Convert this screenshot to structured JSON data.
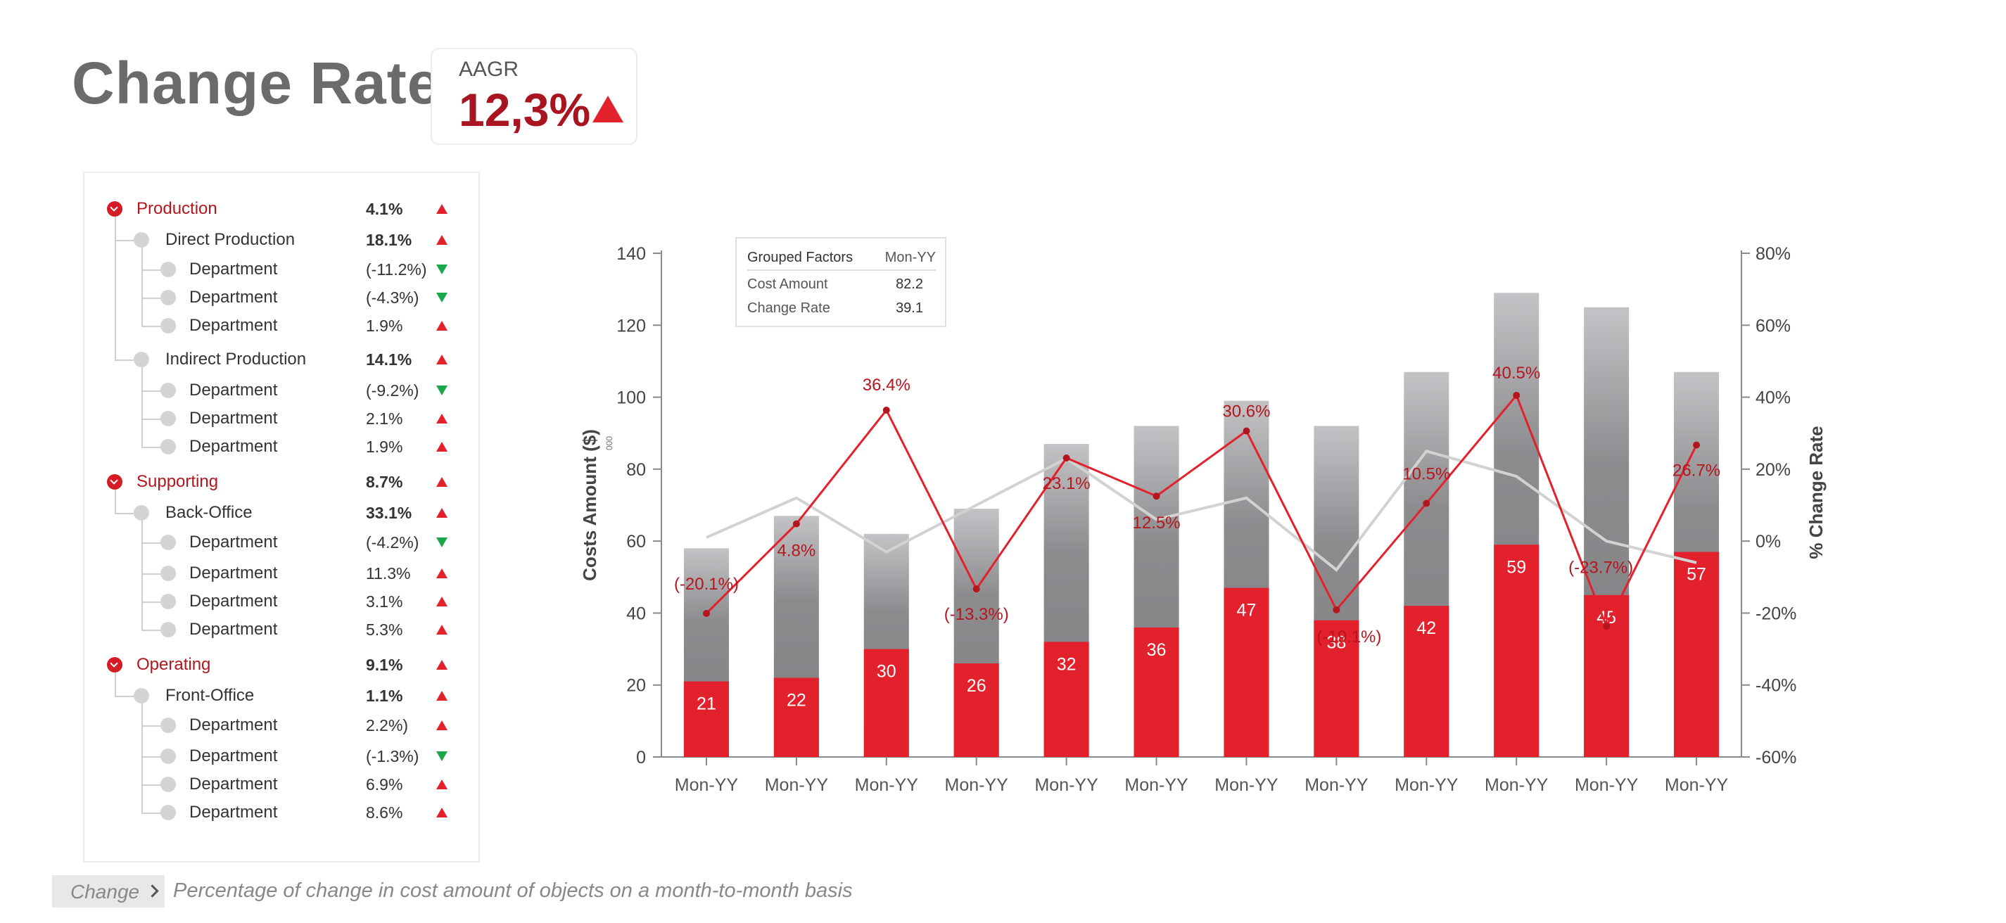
{
  "header": {
    "title": "Change Rate"
  },
  "kpi": {
    "label": "AAGR",
    "value": "12,3%",
    "trend": "up",
    "color": "#a8141f"
  },
  "tree": [
    {
      "level": 0,
      "label": "Production",
      "value": "4.1%",
      "trend": "up"
    },
    {
      "level": 1,
      "label": "Direct Production",
      "value": "18.1%",
      "trend": "up"
    },
    {
      "level": 2,
      "label": "Department",
      "value": "(-11.2%)",
      "trend": "down"
    },
    {
      "level": 2,
      "label": "Department",
      "value": "(-4.3%)",
      "trend": "down"
    },
    {
      "level": 2,
      "label": "Department",
      "value": "1.9%",
      "trend": "up"
    },
    {
      "level": 1,
      "label": "Indirect Production",
      "value": "14.1%",
      "trend": "up"
    },
    {
      "level": 2,
      "label": "Department",
      "value": "(-9.2%)",
      "trend": "down"
    },
    {
      "level": 2,
      "label": "Department",
      "value": "2.1%",
      "trend": "up"
    },
    {
      "level": 2,
      "label": "Department",
      "value": "1.9%",
      "trend": "up"
    },
    {
      "level": 0,
      "label": "Supporting",
      "value": "8.7%",
      "trend": "up"
    },
    {
      "level": 1,
      "label": "Back-Office",
      "value": "33.1%",
      "trend": "up"
    },
    {
      "level": 2,
      "label": "Department",
      "value": "(-4.2%)",
      "trend": "down"
    },
    {
      "level": 2,
      "label": "Department",
      "value": "11.3%",
      "trend": "up"
    },
    {
      "level": 2,
      "label": "Department",
      "value": "3.1%",
      "trend": "up"
    },
    {
      "level": 2,
      "label": "Department",
      "value": "5.3%",
      "trend": "up"
    },
    {
      "level": 0,
      "label": "Operating",
      "value": "9.1%",
      "trend": "up"
    },
    {
      "level": 1,
      "label": "Front-Office",
      "value": "1.1%",
      "trend": "up"
    },
    {
      "level": 2,
      "label": "Department",
      "value": "2.2%)",
      "trend": "up"
    },
    {
      "level": 2,
      "label": "Department",
      "value": "(-1.3%)",
      "trend": "down"
    },
    {
      "level": 2,
      "label": "Department",
      "value": "6.9%",
      "trend": "up"
    },
    {
      "level": 2,
      "label": "Department",
      "value": "8.6%",
      "trend": "up"
    }
  ],
  "chart_data": {
    "type": "bar",
    "categories": [
      "Mon-YY",
      "Mon-YY",
      "Mon-YY",
      "Mon-YY",
      "Mon-YY",
      "Mon-YY",
      "Mon-YY",
      "Mon-YY",
      "Mon-YY",
      "Mon-YY",
      "Mon-YY",
      "Mon-YY"
    ],
    "ylabel": "Costs Amount ($)",
    "ylabel_unit": "000",
    "y2label": "% Change Rate",
    "ylim": [
      0,
      140
    ],
    "y_ticks": [
      "0",
      "20",
      "40",
      "60",
      "80",
      "100",
      "120",
      "140"
    ],
    "y2lim": [
      -60,
      80
    ],
    "y2_ticks": [
      "-60%",
      "-40%",
      "-20%",
      "0%",
      "20%",
      "40%",
      "60%",
      "80%"
    ],
    "series": [
      {
        "kind": "bar",
        "values": [
          21,
          22,
          30,
          26,
          32,
          36,
          47,
          38,
          42,
          59,
          45,
          57
        ],
        "labels": [
          "21",
          "22",
          "30",
          "26",
          "32",
          "36",
          "47",
          "38",
          "42",
          "59",
          "45",
          "57"
        ],
        "color": "#e3212c"
      },
      {
        "kind": "bar-total",
        "values": [
          58,
          67,
          62,
          69,
          87,
          92,
          99,
          92,
          107,
          129,
          125,
          107
        ],
        "color": "#8a8a8d"
      },
      {
        "kind": "line",
        "axis": "y2",
        "values": [
          -20.1,
          4.8,
          36.4,
          -13.3,
          23.1,
          12.5,
          30.6,
          -19.1,
          10.5,
          40.5,
          -23.7,
          26.7
        ],
        "labels": [
          "(-20.1%)",
          "4.8%",
          "36.4%",
          "(-13.3%)",
          "23.1%",
          "12.5%",
          "30.6%",
          "(-19.1%)",
          "10.5%",
          "40.5%",
          "(-23.7%)",
          "26.7%"
        ],
        "color": "#e3212c"
      },
      {
        "kind": "line",
        "axis": "y2",
        "values": [
          1,
          12,
          -3,
          10,
          23,
          6,
          12,
          -8,
          25,
          18,
          0,
          -6
        ],
        "color": "#d2d2d2"
      }
    ],
    "tooltip": {
      "header_left": "Grouped Factors",
      "header_right": "Mon-YY",
      "rows": [
        {
          "label": "Cost Amount",
          "value": "82.2"
        },
        {
          "label": "Change Rate",
          "value": "39.1"
        }
      ]
    }
  },
  "footer": {
    "tag": "Change",
    "text": "Percentage of change in cost amount of objects on a month-to-month basis"
  }
}
